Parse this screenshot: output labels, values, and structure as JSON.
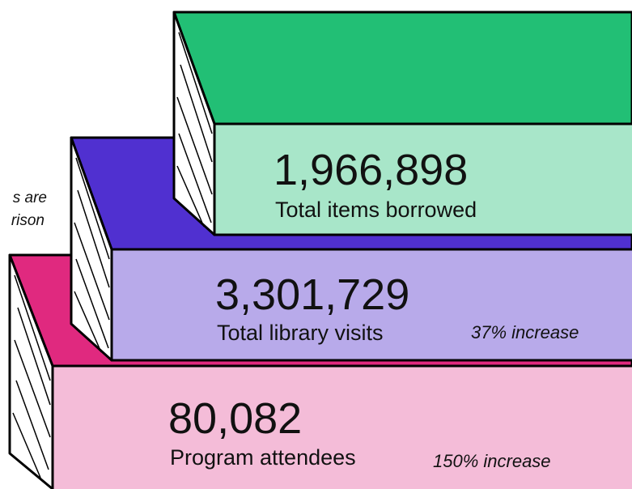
{
  "note_fragments": [
    "s are",
    "rison"
  ],
  "books": [
    {
      "value": "1,966,898",
      "label": "Total items borrowed"
    },
    {
      "value": "3,301,729",
      "label": "Total library visits",
      "change": "37% increase"
    },
    {
      "value": "80,082",
      "label": "Program attendees",
      "change": "150% increase"
    }
  ]
}
